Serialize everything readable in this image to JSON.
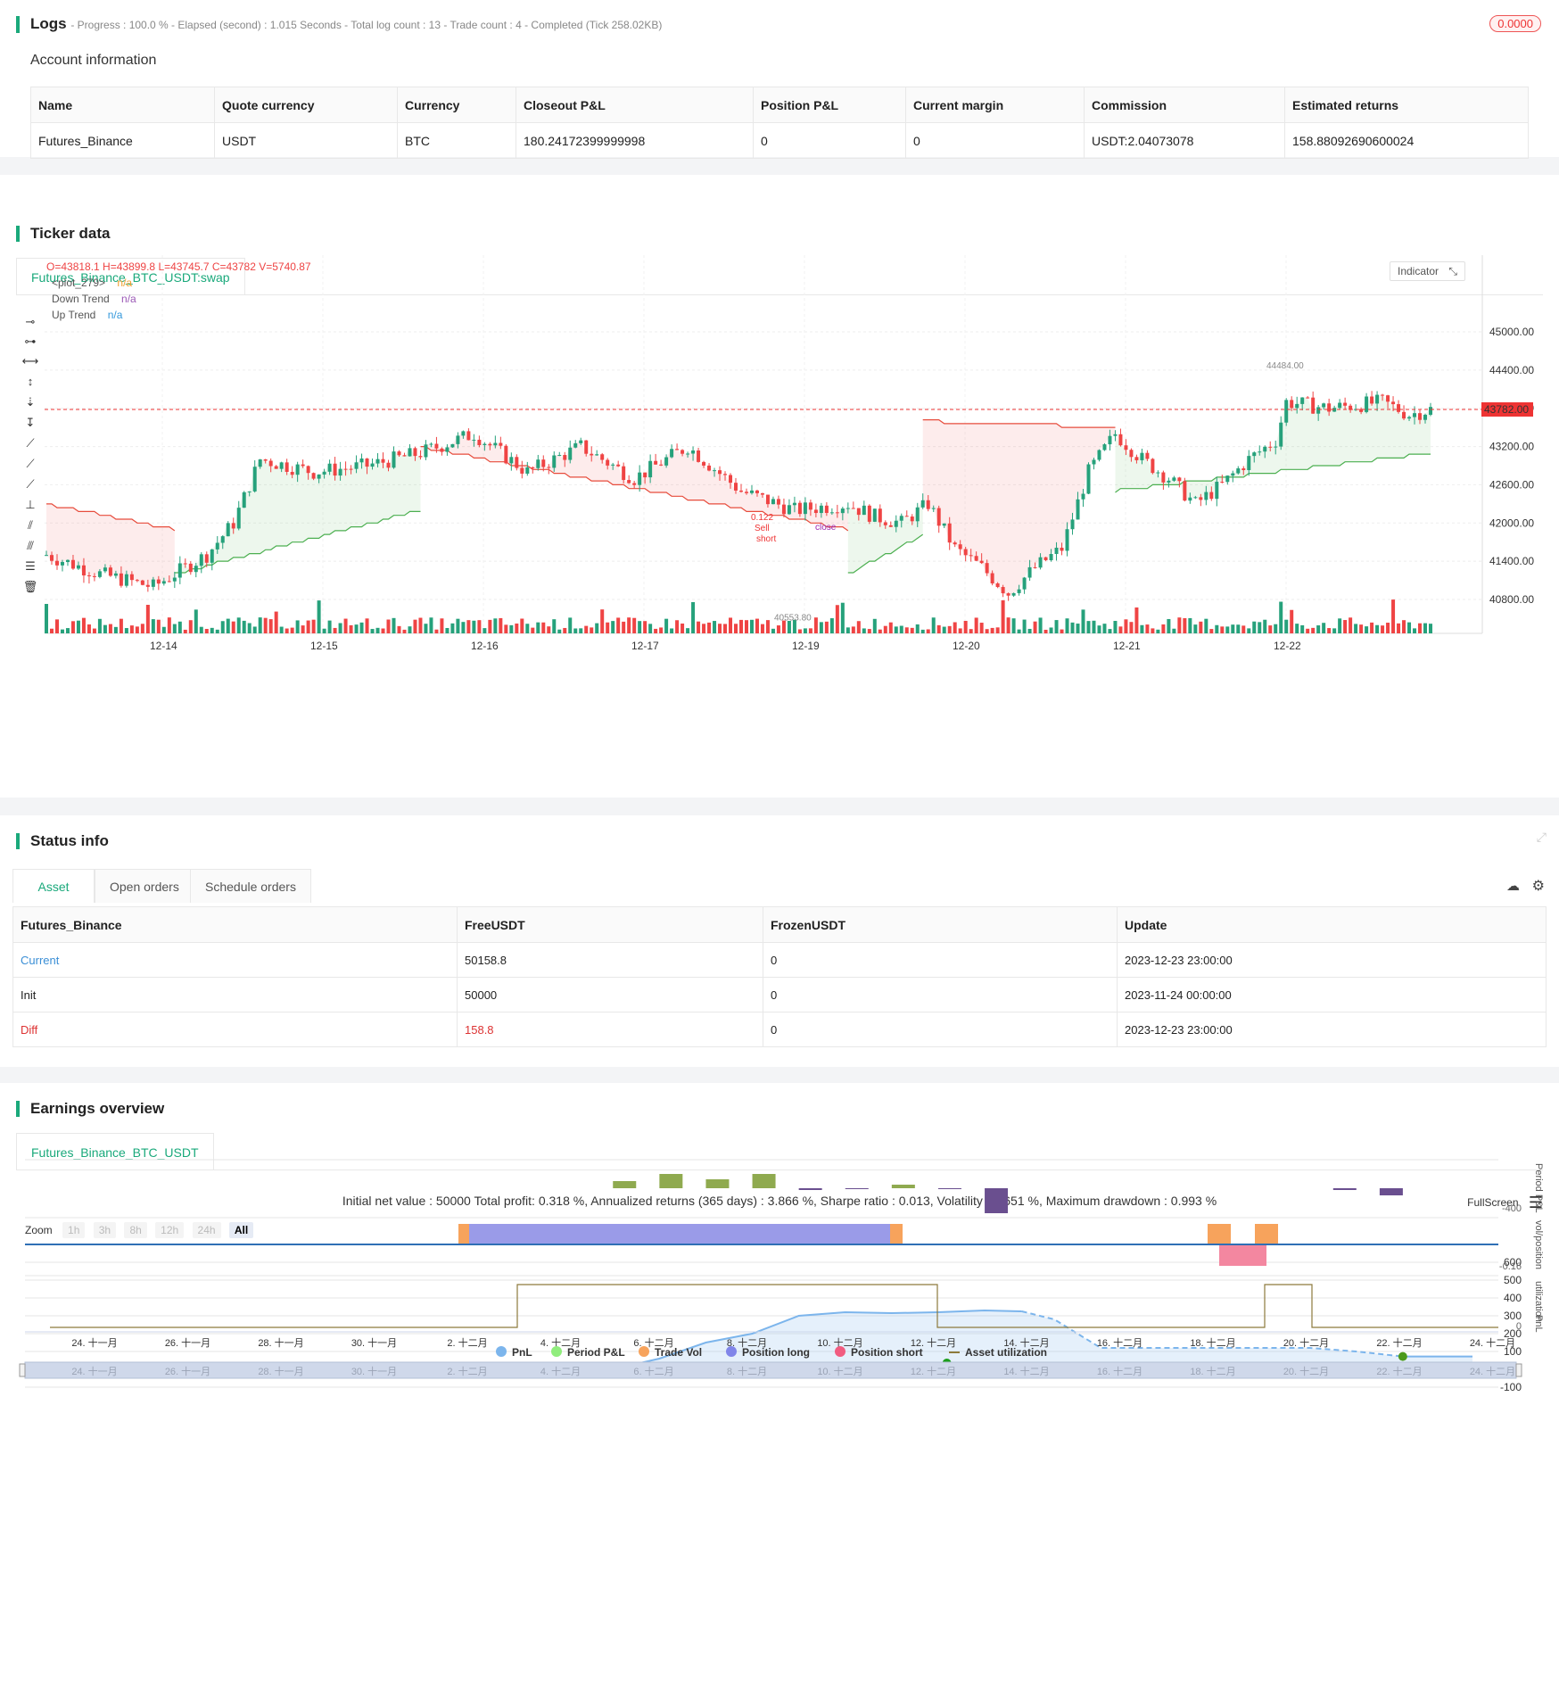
{
  "logs": {
    "title": "Logs",
    "progress": "- Progress : 100.0 % - Elapsed (second) : 1.015 Seconds - Total log count : 13 - Trade count : 4 - Completed (Tick 258.02KB)",
    "badge": "0.0000"
  },
  "account": {
    "title": "Account information",
    "headers": [
      "Name",
      "Quote currency",
      "Currency",
      "Closeout P&L",
      "Position P&L",
      "Current margin",
      "Commission",
      "Estimated returns"
    ],
    "row": [
      "Futures_Binance",
      "USDT",
      "BTC",
      "180.24172399999998",
      "0",
      "0",
      "USDT:2.04073078",
      "158.88092690600024"
    ]
  },
  "ticker": {
    "title": "Ticker data",
    "tab": "Futures_Binance_BTC_USDT:swap",
    "ohlc": "O=43818.1 H=43899.8 L=43745.7 C=43782 V=5740.87",
    "legend": [
      {
        "name": "<plot_279>",
        "value": "n/a",
        "color": "#f0a030"
      },
      {
        "name": "Down Trend",
        "value": "n/a",
        "color": "#9b59b6"
      },
      {
        "name": "Up Trend",
        "value": "n/a",
        "color": "#3498db"
      }
    ],
    "indicator_label": "Indicator",
    "price_ticks": [
      "45000.00",
      "44400.00",
      "43800.00",
      "43200.00",
      "42600.00",
      "42000.00",
      "41400.00",
      "40800.00"
    ],
    "current_price": "43782.00",
    "date_ticks": [
      "12-14",
      "12-15",
      "12-16",
      "12-17",
      "12-19",
      "12-20",
      "12-21",
      "12-22"
    ],
    "high_label": "44484.00",
    "low_label": "40553.80",
    "annotations": {
      "sell_qty": "0.122",
      "sell": "Sell",
      "short": "short",
      "close": "close"
    },
    "colors": {
      "up": "#26a17b",
      "down": "#ef4444",
      "downtrend": "#e74c3c",
      "uptrend": "#4caf50"
    }
  },
  "status": {
    "title": "Status info",
    "tabs": [
      "Asset",
      "Open orders",
      "Schedule orders"
    ],
    "headers": [
      "Futures_Binance",
      "FreeUSDT",
      "FrozenUSDT",
      "Update"
    ],
    "rows": [
      [
        "Current",
        "50158.8",
        "0",
        "2023-12-23 23:00:00"
      ],
      [
        "Init",
        "50000",
        "0",
        "2023-11-24 00:00:00"
      ],
      [
        "Diff",
        "158.8",
        "0",
        "2023-12-23 23:00:00"
      ]
    ]
  },
  "earnings": {
    "title": "Earnings overview",
    "tab": "Futures_Binance_BTC_USDT",
    "summary": "Initial net value : 50000 Total profit: 0.318 %, Annualized returns (365 days) : 3.866 %, Sharpe ratio : 0.013, Volatility : 0.651 %, Maximum drawdown : 0.993 %",
    "fullscreen": "FullScreen",
    "zoom_label": "Zoom",
    "zoom_options": [
      "1h",
      "3h",
      "8h",
      "12h",
      "24h",
      "All"
    ],
    "pnl_ticks": [
      "600",
      "500",
      "400",
      "300",
      "200",
      "100",
      "0",
      "-100"
    ],
    "pnl_axis": "PnL",
    "period_axis": "Period P&L",
    "period_tick": "-400",
    "vol_axis": "vol/position",
    "vol_tick": "-0.16",
    "util_axis": "utilization",
    "util_tick": "0",
    "x_ticks": [
      "24. 十一月",
      "26. 十一月",
      "28. 十一月",
      "30. 十一月",
      "2. 十二月",
      "4. 十二月",
      "6. 十二月",
      "8. 十二月",
      "10. 十二月",
      "12. 十二月",
      "14. 十二月",
      "16. 十二月",
      "18. 十二月",
      "20. 十二月",
      "22. 十二月",
      "24. 十二月"
    ],
    "legend": [
      {
        "name": "PnL",
        "color": "#7cb5ec"
      },
      {
        "name": "Period P&L",
        "color": "#90ed7d"
      },
      {
        "name": "Trade Vol",
        "color": "#f7a35c"
      },
      {
        "name": "Position long",
        "color": "#8085e9"
      },
      {
        "name": "Position short",
        "color": "#f15c80"
      },
      {
        "name": "Asset utilization",
        "color": "#8d7a3c"
      }
    ]
  }
}
